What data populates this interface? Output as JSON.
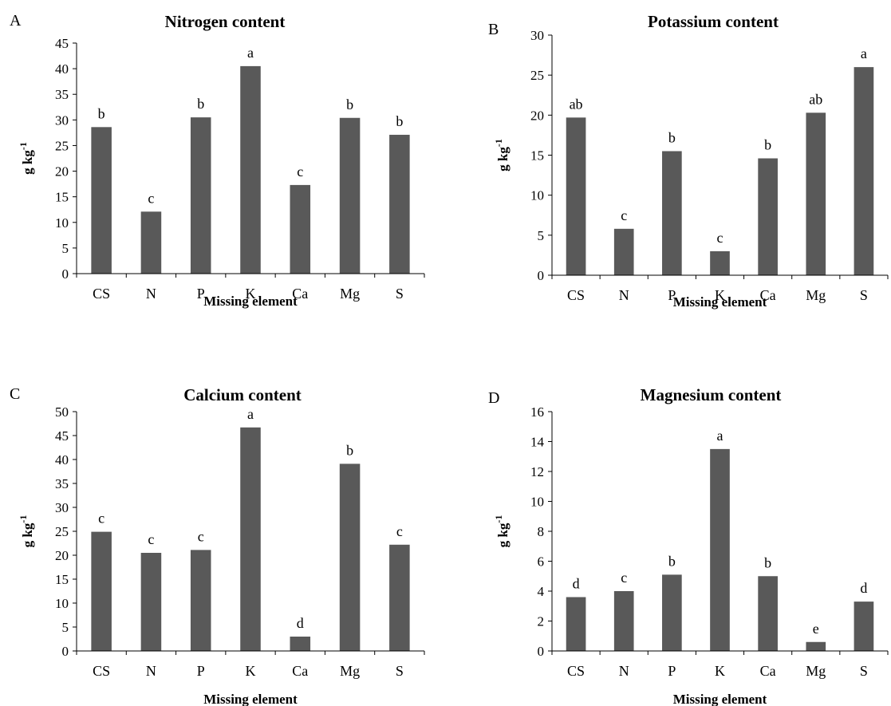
{
  "chart_data": [
    {
      "panel": "A",
      "type": "bar",
      "title": "Nitrogen content",
      "xlabel": "Missing element",
      "ylabel": "g kg-1",
      "ylabel_base": "g  kg",
      "ylabel_sup": "-1",
      "ylim": [
        0,
        45
      ],
      "yticks": [
        0,
        5,
        10,
        15,
        20,
        25,
        30,
        35,
        40,
        45
      ],
      "categories": [
        "CS",
        "N",
        "P",
        "K",
        "Ca",
        "Mg",
        "S"
      ],
      "values": [
        28.6,
        12.1,
        30.5,
        40.5,
        17.3,
        30.4,
        27.1
      ],
      "labels": [
        "b",
        "c",
        "b",
        "a",
        "c",
        "b",
        "b"
      ],
      "bar_color": "#595959"
    },
    {
      "panel": "B",
      "type": "bar",
      "title": "Potassium content",
      "xlabel": "Missing element",
      "ylabel": "g kg-1",
      "ylabel_base": "g  kg",
      "ylabel_sup": "-1",
      "ylim": [
        0,
        30
      ],
      "yticks": [
        0,
        5,
        10,
        15,
        20,
        25,
        30
      ],
      "categories": [
        "CS",
        "N",
        "P",
        "K",
        "Ca",
        "Mg",
        "S"
      ],
      "values": [
        19.7,
        5.8,
        15.5,
        3.0,
        14.6,
        20.3,
        26.0
      ],
      "labels": [
        "ab",
        "c",
        "b",
        "c",
        "b",
        "ab",
        "a"
      ],
      "bar_color": "#595959"
    },
    {
      "panel": "C",
      "type": "bar",
      "title": "Calcium content",
      "xlabel": "Missing element",
      "ylabel": "g kg-1",
      "ylabel_base": "g  kg",
      "ylabel_sup": "-1",
      "ylim": [
        0,
        50
      ],
      "yticks": [
        0,
        5,
        10,
        15,
        20,
        25,
        30,
        35,
        40,
        45,
        50
      ],
      "categories": [
        "CS",
        "N",
        "P",
        "K",
        "Ca",
        "Mg",
        "S"
      ],
      "values": [
        24.9,
        20.5,
        21.1,
        46.7,
        3.0,
        39.1,
        22.2
      ],
      "labels": [
        "c",
        "c",
        "c",
        "a",
        "d",
        "b",
        "c"
      ],
      "bar_color": "#595959"
    },
    {
      "panel": "D",
      "type": "bar",
      "title": "Magnesium content",
      "xlabel": "Missing element",
      "ylabel": "g kg-1",
      "ylabel_base": "g  kg",
      "ylabel_sup": "-1",
      "ylim": [
        0,
        16
      ],
      "yticks": [
        0,
        2,
        4,
        6,
        8,
        10,
        12,
        14,
        16
      ],
      "categories": [
        "CS",
        "N",
        "P",
        "K",
        "Ca",
        "Mg",
        "S"
      ],
      "values": [
        3.6,
        4.0,
        5.1,
        13.5,
        5.0,
        0.6,
        3.3
      ],
      "labels": [
        "d",
        "c",
        "b",
        "a",
        "b",
        "e",
        "d"
      ],
      "bar_color": "#595959"
    }
  ]
}
